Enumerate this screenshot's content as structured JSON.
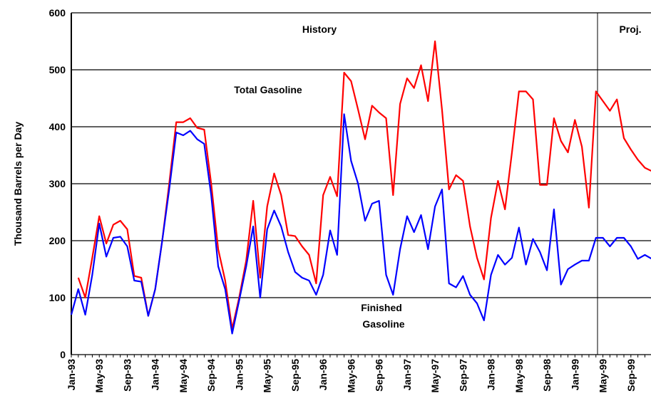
{
  "chart_data": {
    "type": "line",
    "y_label": "Thousand Barrels per Day",
    "annotations": [
      "History",
      "Proj.",
      "Total Gasoline",
      "Finished",
      "Gasoline"
    ],
    "categories": [
      "Jan-93",
      null,
      null,
      null,
      "May-93",
      null,
      null,
      null,
      "Sep-93",
      null,
      null,
      null,
      "Jan-94",
      null,
      null,
      null,
      "May-94",
      null,
      null,
      null,
      "Sep-94",
      null,
      null,
      null,
      "Jan-95",
      null,
      null,
      null,
      "May-95",
      null,
      null,
      null,
      "Sep-95",
      null,
      null,
      null,
      "Jan-96",
      null,
      null,
      null,
      "May-96",
      null,
      null,
      null,
      "Sep-96",
      null,
      null,
      null,
      "Jan-97",
      null,
      null,
      null,
      "May-97",
      null,
      null,
      null,
      "Sep-97",
      null,
      null,
      null,
      "Jan-98",
      null,
      null,
      null,
      "May-98",
      null,
      null,
      null,
      "Sep-98",
      null,
      null,
      null,
      "Jan-99",
      null,
      null,
      null,
      "May-99",
      null,
      null,
      null,
      "Sep-99",
      null,
      null,
      null
    ],
    "series": [
      {
        "name": "Total Gasoline",
        "color": "#ff0000",
        "values": [
          null,
          135,
          100,
          170,
          243,
          195,
          228,
          235,
          220,
          138,
          135,
          68,
          115,
          200,
          300,
          408,
          408,
          415,
          398,
          395,
          300,
          185,
          130,
          45,
          100,
          165,
          270,
          135,
          260,
          318,
          280,
          210,
          208,
          190,
          175,
          125,
          280,
          312,
          278,
          495,
          480,
          430,
          378,
          437,
          425,
          415,
          280,
          440,
          485,
          468,
          508,
          445,
          550,
          430,
          290,
          315,
          305,
          225,
          170,
          132,
          240,
          305,
          255,
          355,
          462,
          462,
          448,
          298,
          298,
          415,
          375,
          355,
          412,
          365,
          258,
          462,
          445,
          428,
          448,
          380,
          360,
          342,
          328,
          322
        ]
      },
      {
        "name": "Finished Gasoline",
        "color": "#0000ff",
        "values": [
          70,
          115,
          70,
          140,
          230,
          172,
          205,
          207,
          190,
          130,
          128,
          68,
          115,
          200,
          290,
          390,
          385,
          393,
          378,
          370,
          280,
          155,
          115,
          37,
          95,
          155,
          225,
          100,
          220,
          253,
          225,
          180,
          145,
          135,
          130,
          105,
          140,
          218,
          175,
          422,
          340,
          300,
          235,
          265,
          270,
          140,
          105,
          185,
          243,
          215,
          245,
          185,
          260,
          290,
          125,
          118,
          138,
          105,
          90,
          60,
          140,
          175,
          158,
          170,
          223,
          158,
          203,
          180,
          148,
          255,
          123,
          150,
          158,
          165,
          165,
          205,
          205,
          190,
          205,
          205,
          190,
          168,
          175,
          168
        ]
      }
    ],
    "ylim": [
      0,
      600
    ],
    "yticks": [
      0,
      100,
      200,
      300,
      400,
      500,
      600
    ],
    "grid": true
  }
}
